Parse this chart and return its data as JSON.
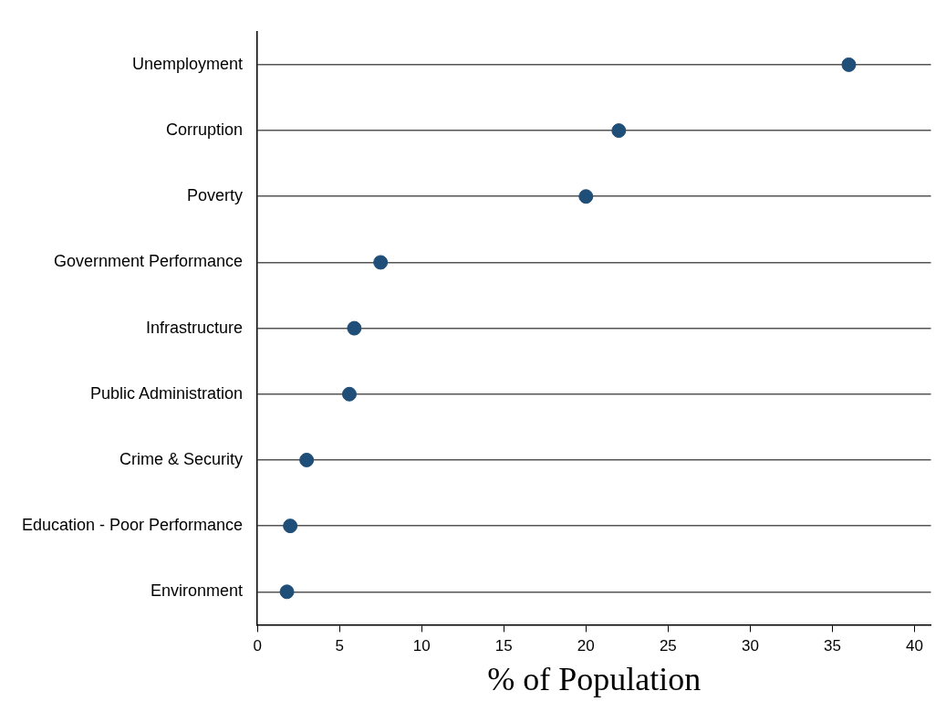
{
  "chart_data": {
    "type": "scatter",
    "orientation": "horizontal",
    "xlabel": "% of Population",
    "categories": [
      "Unemployment",
      "Corruption",
      "Poverty",
      "Government Performance",
      "Infrastructure",
      "Public Administration",
      "Crime & Security",
      "Education - Poor Performance",
      "Environment"
    ],
    "series": [
      {
        "color": "#1f4e79",
        "values": [
          36,
          22,
          20,
          7.5,
          5.9,
          5.6,
          3,
          2,
          1.8
        ]
      }
    ],
    "xlim": [
      0,
      41
    ],
    "xticks": [
      0,
      5,
      10,
      15,
      20,
      25,
      30,
      35,
      40
    ],
    "grid": "y",
    "marker": "circle",
    "legend": false
  }
}
